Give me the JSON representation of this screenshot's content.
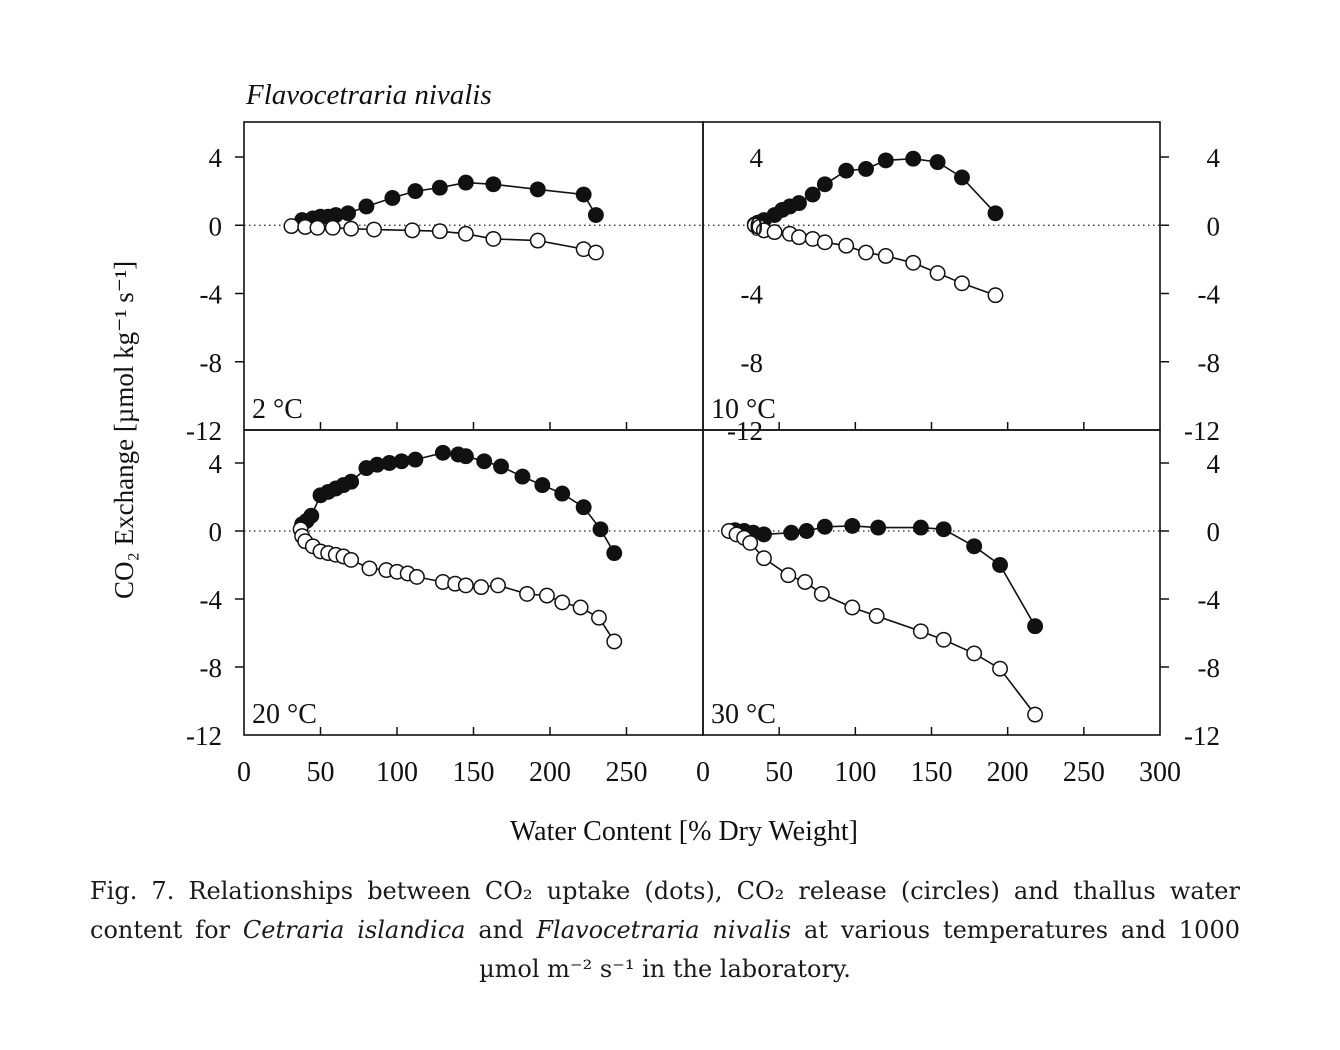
{
  "figure": {
    "species_title": "Flavocetraria nivalis",
    "ylabel": "CO₂ Exchange [µmol kg⁻¹ s⁻¹]",
    "xlabel": "Water Content [% Dry Weight]"
  },
  "caption": {
    "fig_label": "Fig. 7.",
    "text_1": "Relationships between CO₂ uptake (dots), CO₂ release (circles) and thallus water content for",
    "species_1": "Cetraria islandica",
    "and": "and",
    "species_2": "Flavocetraria nivalis",
    "text_2": "at various temperatures and 1000 µmol m⁻² s⁻¹ in the laboratory."
  },
  "chart_data": [
    {
      "type": "line",
      "panel_label": "2 °C",
      "xlim": [
        0,
        300
      ],
      "ylim": [
        -12,
        6
      ],
      "xticks": [],
      "yticks_left": [
        4,
        0,
        -4,
        -8,
        -12
      ],
      "yticks_right": [
        4,
        0,
        -4,
        -8,
        -12
      ],
      "zero_line": true,
      "series": [
        {
          "marker": "filled",
          "x": [
            38,
            45,
            50,
            55,
            60,
            68,
            80,
            97,
            112,
            128,
            145,
            163,
            192,
            222,
            230
          ],
          "y": [
            0.3,
            0.4,
            0.5,
            0.5,
            0.6,
            0.7,
            1.1,
            1.6,
            2.0,
            2.2,
            2.5,
            2.4,
            2.1,
            1.8,
            0.6
          ]
        },
        {
          "marker": "open",
          "x": [
            31,
            40,
            48,
            58,
            70,
            85,
            110,
            128,
            145,
            163,
            192,
            222,
            230
          ],
          "y": [
            -0.05,
            -0.1,
            -0.15,
            -0.15,
            -0.2,
            -0.25,
            -0.3,
            -0.35,
            -0.5,
            -0.8,
            -0.9,
            -1.4,
            -1.6
          ]
        }
      ]
    },
    {
      "type": "line",
      "panel_label": "10 °C",
      "xlim": [
        0,
        300
      ],
      "ylim": [
        -12,
        6
      ],
      "xticks": [],
      "yticks_left": [],
      "yticks_right": [
        4,
        0,
        -4,
        -8,
        -12
      ],
      "zero_line": true,
      "series": [
        {
          "marker": "filled",
          "x": [
            34,
            36,
            40,
            47,
            52,
            57,
            63,
            72,
            80,
            94,
            107,
            120,
            138,
            154,
            170,
            192
          ],
          "y": [
            0.05,
            0.15,
            0.3,
            0.6,
            0.9,
            1.1,
            1.3,
            1.8,
            2.4,
            3.2,
            3.3,
            3.8,
            3.9,
            3.7,
            2.8,
            0.7
          ]
        },
        {
          "marker": "open",
          "x": [
            34,
            37,
            40,
            47,
            57,
            63,
            72,
            80,
            94,
            107,
            120,
            138,
            154,
            170,
            192
          ],
          "y": [
            0,
            -0.1,
            -0.3,
            -0.4,
            -0.5,
            -0.7,
            -0.8,
            -1.0,
            -1.2,
            -1.6,
            -1.8,
            -2.2,
            -2.8,
            -3.4,
            -4.1
          ]
        }
      ]
    },
    {
      "type": "line",
      "panel_label": "20 °C",
      "xlim": [
        0,
        300
      ],
      "ylim": [
        -12,
        6
      ],
      "xticks": [
        0,
        50,
        100,
        150,
        200,
        250
      ],
      "yticks_left": [
        4,
        0,
        -4,
        -8,
        -12
      ],
      "yticks_right": [],
      "zero_line": true,
      "series": [
        {
          "marker": "filled",
          "x": [
            38,
            41,
            44,
            50,
            55,
            60,
            65,
            70,
            80,
            87,
            95,
            103,
            112,
            130,
            140,
            145,
            157,
            168,
            182,
            195,
            208,
            222,
            233,
            242
          ],
          "y": [
            0.4,
            0.6,
            0.9,
            2.1,
            2.3,
            2.5,
            2.7,
            2.9,
            3.7,
            3.9,
            4.0,
            4.1,
            4.2,
            4.6,
            4.5,
            4.4,
            4.1,
            3.8,
            3.2,
            2.7,
            2.2,
            1.4,
            0.1,
            -1.3
          ]
        },
        {
          "marker": "open",
          "x": [
            37,
            38,
            40,
            45,
            50,
            55,
            60,
            65,
            70,
            82,
            93,
            100,
            107,
            113,
            130,
            138,
            145,
            155,
            166,
            185,
            198,
            208,
            220,
            232,
            242
          ],
          "y": [
            0.1,
            -0.3,
            -0.6,
            -0.9,
            -1.2,
            -1.3,
            -1.4,
            -1.5,
            -1.7,
            -2.2,
            -2.3,
            -2.4,
            -2.5,
            -2.7,
            -3.0,
            -3.1,
            -3.2,
            -3.3,
            -3.2,
            -3.7,
            -3.8,
            -4.2,
            -4.5,
            -5.1,
            -6.5
          ]
        }
      ]
    },
    {
      "type": "line",
      "panel_label": "30 °C",
      "xlim": [
        0,
        300
      ],
      "ylim": [
        -12,
        6
      ],
      "xticks": [
        0,
        50,
        100,
        150,
        200,
        250,
        300
      ],
      "yticks_left": [],
      "yticks_right": [
        4,
        0,
        -4,
        -8,
        -12
      ],
      "zero_line": true,
      "series": [
        {
          "marker": "filled",
          "x": [
            21,
            27,
            33,
            40,
            58,
            68,
            80,
            98,
            115,
            143,
            158,
            178,
            195,
            218
          ],
          "y": [
            0.05,
            0,
            -0.1,
            -0.2,
            -0.1,
            0,
            0.25,
            0.3,
            0.2,
            0.2,
            0.1,
            -0.9,
            -2.0,
            -5.6
          ]
        },
        {
          "marker": "open",
          "x": [
            17,
            22,
            27,
            31,
            40,
            56,
            67,
            78,
            98,
            114,
            143,
            158,
            178,
            195,
            218
          ],
          "y": [
            0,
            -0.2,
            -0.4,
            -0.7,
            -1.6,
            -2.6,
            -3.0,
            -3.7,
            -4.5,
            -5.0,
            -5.9,
            -6.4,
            -7.2,
            -8.1,
            -10.8
          ]
        }
      ]
    }
  ]
}
